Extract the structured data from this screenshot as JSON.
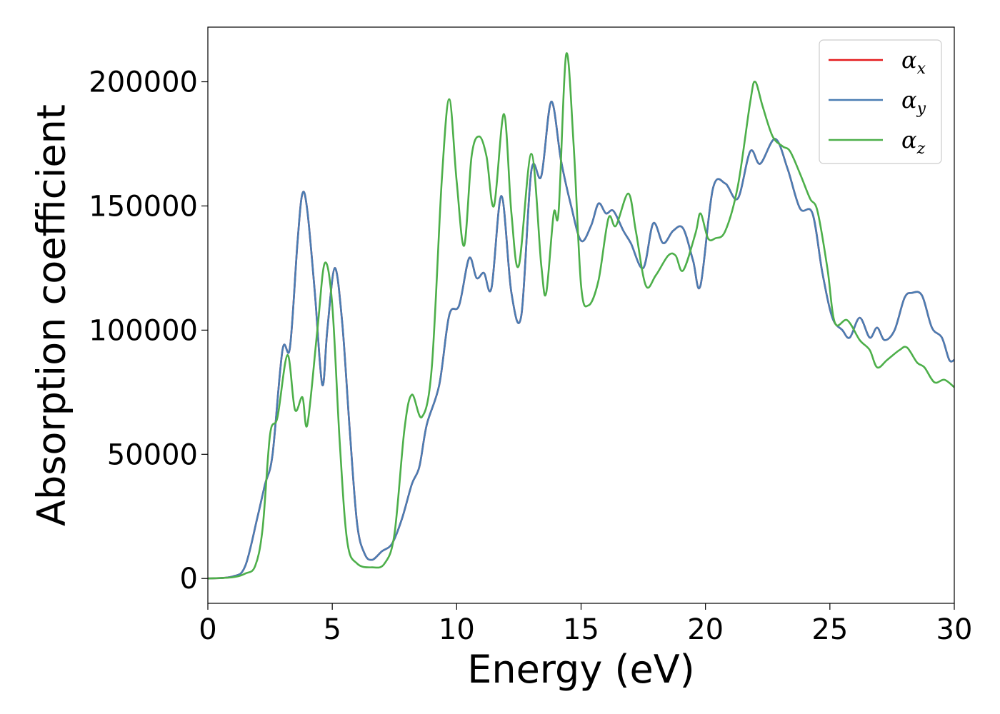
{
  "chart_data": {
    "type": "line",
    "title": "",
    "xlabel": "Energy (eV)",
    "ylabel": "Absorption coefficient",
    "xlim": [
      0,
      30
    ],
    "ylim": [
      -10000,
      222000
    ],
    "xticks": [
      "0",
      "5",
      "10",
      "15",
      "20",
      "25",
      "30"
    ],
    "yticks": [
      "0",
      "50000",
      "100000",
      "150000",
      "200000"
    ],
    "grid": false,
    "legend_position": "top-right",
    "series": [
      {
        "name": "αx",
        "legend_base": "α",
        "legend_sub": "x",
        "color": "#e41a1c",
        "points": [
          [
            0,
            0
          ],
          [
            1.0,
            800
          ],
          [
            1.5,
            5000
          ],
          [
            2.0,
            25000
          ],
          [
            2.3,
            38000
          ],
          [
            2.6,
            50000
          ],
          [
            3.0,
            92000
          ],
          [
            3.3,
            93000
          ],
          [
            3.6,
            135000
          ],
          [
            3.8,
            155000
          ],
          [
            4.0,
            148000
          ],
          [
            4.3,
            115000
          ],
          [
            4.6,
            78000
          ],
          [
            4.8,
            100000
          ],
          [
            5.1,
            125000
          ],
          [
            5.4,
            103000
          ],
          [
            5.7,
            60000
          ],
          [
            6.0,
            22000
          ],
          [
            6.3,
            10000
          ],
          [
            6.6,
            7500
          ],
          [
            7.0,
            11000
          ],
          [
            7.4,
            14000
          ],
          [
            7.8,
            24000
          ],
          [
            8.2,
            38000
          ],
          [
            8.5,
            45000
          ],
          [
            8.8,
            62000
          ],
          [
            9.3,
            78000
          ],
          [
            9.7,
            106000
          ],
          [
            10.1,
            110000
          ],
          [
            10.5,
            129000
          ],
          [
            10.8,
            121000
          ],
          [
            11.1,
            123000
          ],
          [
            11.4,
            117000
          ],
          [
            11.8,
            154000
          ],
          [
            12.2,
            115000
          ],
          [
            12.6,
            106000
          ],
          [
            13.0,
            164000
          ],
          [
            13.4,
            162000
          ],
          [
            13.8,
            192000
          ],
          [
            14.2,
            168000
          ],
          [
            14.6,
            150000
          ],
          [
            15.0,
            136000
          ],
          [
            15.4,
            142000
          ],
          [
            15.7,
            151000
          ],
          [
            16.0,
            147000
          ],
          [
            16.3,
            148000
          ],
          [
            16.7,
            140000
          ],
          [
            17.0,
            135000
          ],
          [
            17.5,
            125000
          ],
          [
            17.9,
            143000
          ],
          [
            18.3,
            135000
          ],
          [
            18.7,
            140000
          ],
          [
            19.1,
            141000
          ],
          [
            19.5,
            128000
          ],
          [
            19.8,
            118000
          ],
          [
            20.3,
            157000
          ],
          [
            20.8,
            159000
          ],
          [
            21.3,
            153000
          ],
          [
            21.8,
            172000
          ],
          [
            22.2,
            167000
          ],
          [
            22.8,
            177000
          ],
          [
            23.3,
            165000
          ],
          [
            23.8,
            149000
          ],
          [
            24.3,
            147000
          ],
          [
            24.7,
            123000
          ],
          [
            25.1,
            105000
          ],
          [
            25.5,
            100000
          ],
          [
            25.8,
            97000
          ],
          [
            26.2,
            105000
          ],
          [
            26.6,
            97000
          ],
          [
            26.9,
            101000
          ],
          [
            27.2,
            96000
          ],
          [
            27.6,
            100000
          ],
          [
            28.0,
            113000
          ],
          [
            28.3,
            115000
          ],
          [
            28.7,
            114000
          ],
          [
            29.1,
            101000
          ],
          [
            29.5,
            97000
          ],
          [
            29.8,
            88000
          ],
          [
            30.0,
            88000
          ]
        ]
      },
      {
        "name": "αy",
        "legend_base": "α",
        "legend_sub": "y",
        "color": "#4a7db3",
        "points": [
          [
            0,
            0
          ],
          [
            1.0,
            800
          ],
          [
            1.5,
            5000
          ],
          [
            2.0,
            25000
          ],
          [
            2.3,
            38000
          ],
          [
            2.6,
            50000
          ],
          [
            3.0,
            92000
          ],
          [
            3.3,
            93000
          ],
          [
            3.6,
            135000
          ],
          [
            3.8,
            155000
          ],
          [
            4.0,
            148000
          ],
          [
            4.3,
            115000
          ],
          [
            4.6,
            78000
          ],
          [
            4.8,
            100000
          ],
          [
            5.1,
            125000
          ],
          [
            5.4,
            103000
          ],
          [
            5.7,
            60000
          ],
          [
            6.0,
            22000
          ],
          [
            6.3,
            10000
          ],
          [
            6.6,
            7500
          ],
          [
            7.0,
            11000
          ],
          [
            7.4,
            14000
          ],
          [
            7.8,
            24000
          ],
          [
            8.2,
            38000
          ],
          [
            8.5,
            45000
          ],
          [
            8.8,
            62000
          ],
          [
            9.3,
            78000
          ],
          [
            9.7,
            106000
          ],
          [
            10.1,
            110000
          ],
          [
            10.5,
            129000
          ],
          [
            10.8,
            121000
          ],
          [
            11.1,
            123000
          ],
          [
            11.4,
            117000
          ],
          [
            11.8,
            154000
          ],
          [
            12.2,
            115000
          ],
          [
            12.6,
            106000
          ],
          [
            13.0,
            164000
          ],
          [
            13.4,
            162000
          ],
          [
            13.8,
            192000
          ],
          [
            14.2,
            168000
          ],
          [
            14.6,
            150000
          ],
          [
            15.0,
            136000
          ],
          [
            15.4,
            142000
          ],
          [
            15.7,
            151000
          ],
          [
            16.0,
            147000
          ],
          [
            16.3,
            148000
          ],
          [
            16.7,
            140000
          ],
          [
            17.0,
            135000
          ],
          [
            17.5,
            125000
          ],
          [
            17.9,
            143000
          ],
          [
            18.3,
            135000
          ],
          [
            18.7,
            140000
          ],
          [
            19.1,
            141000
          ],
          [
            19.5,
            128000
          ],
          [
            19.8,
            118000
          ],
          [
            20.3,
            157000
          ],
          [
            20.8,
            159000
          ],
          [
            21.3,
            153000
          ],
          [
            21.8,
            172000
          ],
          [
            22.2,
            167000
          ],
          [
            22.8,
            177000
          ],
          [
            23.3,
            165000
          ],
          [
            23.8,
            149000
          ],
          [
            24.3,
            147000
          ],
          [
            24.7,
            123000
          ],
          [
            25.1,
            105000
          ],
          [
            25.5,
            100000
          ],
          [
            25.8,
            97000
          ],
          [
            26.2,
            105000
          ],
          [
            26.6,
            97000
          ],
          [
            26.9,
            101000
          ],
          [
            27.2,
            96000
          ],
          [
            27.6,
            100000
          ],
          [
            28.0,
            113000
          ],
          [
            28.3,
            115000
          ],
          [
            28.7,
            114000
          ],
          [
            29.1,
            101000
          ],
          [
            29.5,
            97000
          ],
          [
            29.8,
            88000
          ],
          [
            30.0,
            88000
          ]
        ]
      },
      {
        "name": "αz",
        "legend_base": "α",
        "legend_sub": "z",
        "color": "#4daf4a",
        "points": [
          [
            0,
            0
          ],
          [
            1.0,
            500
          ],
          [
            1.5,
            2000
          ],
          [
            1.9,
            5000
          ],
          [
            2.2,
            20000
          ],
          [
            2.5,
            58000
          ],
          [
            2.8,
            65000
          ],
          [
            3.2,
            90000
          ],
          [
            3.5,
            68000
          ],
          [
            3.8,
            73000
          ],
          [
            4.0,
            62000
          ],
          [
            4.4,
            100000
          ],
          [
            4.7,
            127000
          ],
          [
            5.0,
            110000
          ],
          [
            5.3,
            55000
          ],
          [
            5.6,
            15000
          ],
          [
            6.0,
            6000
          ],
          [
            6.6,
            4500
          ],
          [
            7.1,
            6000
          ],
          [
            7.5,
            18000
          ],
          [
            7.9,
            60000
          ],
          [
            8.2,
            74000
          ],
          [
            8.6,
            65000
          ],
          [
            9.0,
            85000
          ],
          [
            9.4,
            160000
          ],
          [
            9.7,
            193000
          ],
          [
            10.0,
            160000
          ],
          [
            10.3,
            134000
          ],
          [
            10.6,
            170000
          ],
          [
            10.9,
            178000
          ],
          [
            11.2,
            170000
          ],
          [
            11.5,
            150000
          ],
          [
            11.9,
            187000
          ],
          [
            12.2,
            147000
          ],
          [
            12.5,
            126000
          ],
          [
            13.0,
            171000
          ],
          [
            13.4,
            126000
          ],
          [
            13.6,
            115000
          ],
          [
            13.9,
            147000
          ],
          [
            14.1,
            148000
          ],
          [
            14.4,
            211000
          ],
          [
            14.7,
            175000
          ],
          [
            15.0,
            118000
          ],
          [
            15.3,
            110000
          ],
          [
            15.7,
            120000
          ],
          [
            16.1,
            145000
          ],
          [
            16.4,
            142000
          ],
          [
            16.9,
            155000
          ],
          [
            17.2,
            140000
          ],
          [
            17.6,
            118000
          ],
          [
            18.0,
            122000
          ],
          [
            18.5,
            130000
          ],
          [
            18.8,
            130000
          ],
          [
            19.1,
            124000
          ],
          [
            19.6,
            139000
          ],
          [
            19.8,
            147000
          ],
          [
            20.1,
            137000
          ],
          [
            20.4,
            137000
          ],
          [
            20.8,
            140000
          ],
          [
            21.3,
            158000
          ],
          [
            21.8,
            192000
          ],
          [
            22.0,
            200000
          ],
          [
            22.3,
            190000
          ],
          [
            22.7,
            178000
          ],
          [
            23.1,
            174000
          ],
          [
            23.4,
            172000
          ],
          [
            23.8,
            163000
          ],
          [
            24.2,
            153000
          ],
          [
            24.5,
            148000
          ],
          [
            24.9,
            125000
          ],
          [
            25.2,
            103000
          ],
          [
            25.7,
            104000
          ],
          [
            26.2,
            96000
          ],
          [
            26.6,
            92000
          ],
          [
            26.9,
            85000
          ],
          [
            27.3,
            88000
          ],
          [
            27.8,
            92000
          ],
          [
            28.1,
            93000
          ],
          [
            28.5,
            87000
          ],
          [
            28.8,
            85000
          ],
          [
            29.2,
            79000
          ],
          [
            29.6,
            80000
          ],
          [
            30.0,
            77000
          ]
        ]
      }
    ]
  }
}
